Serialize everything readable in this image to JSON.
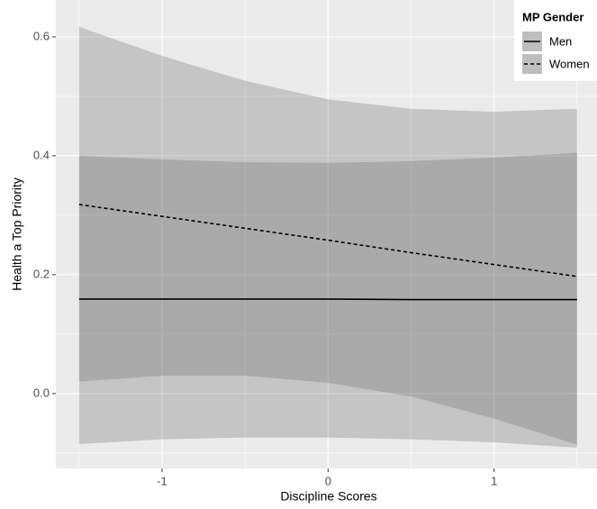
{
  "chart_data": {
    "type": "ribbon-line",
    "x_label": "Discipline Scores",
    "y_label": "Health a Top Priority",
    "x": [
      -1.5,
      -1,
      -0.5,
      0,
      0.5,
      1,
      1.5
    ],
    "xlim": [
      -1.64,
      1.62
    ],
    "ylim": [
      -0.126,
      0.662
    ],
    "xticks": [
      -1,
      0,
      1
    ],
    "yticks": [
      0.0,
      0.2,
      0.4,
      0.6
    ],
    "grid": true,
    "legend": {
      "title": "MP Gender",
      "position": "top-right"
    },
    "series": [
      {
        "name": "Men",
        "color": "#000000",
        "dash": "solid",
        "ribbon_color": "#666666",
        "values": [
          0.159,
          0.159,
          0.159,
          0.159,
          0.158,
          0.158,
          0.158
        ],
        "upper": [
          0.4,
          0.394,
          0.389,
          0.388,
          0.391,
          0.397,
          0.405
        ],
        "lower": [
          0.02,
          0.03,
          0.03,
          0.018,
          -0.005,
          -0.042,
          -0.086
        ]
      },
      {
        "name": "Women",
        "color": "#000000",
        "dash": "dotted",
        "ribbon_color": "#666666",
        "values": [
          0.318,
          0.298,
          0.278,
          0.258,
          0.237,
          0.217,
          0.197
        ],
        "upper": [
          0.617,
          0.568,
          0.526,
          0.495,
          0.479,
          0.474,
          0.479
        ],
        "lower": [
          -0.085,
          -0.077,
          -0.074,
          -0.074,
          -0.077,
          -0.082,
          -0.091
        ]
      }
    ]
  }
}
